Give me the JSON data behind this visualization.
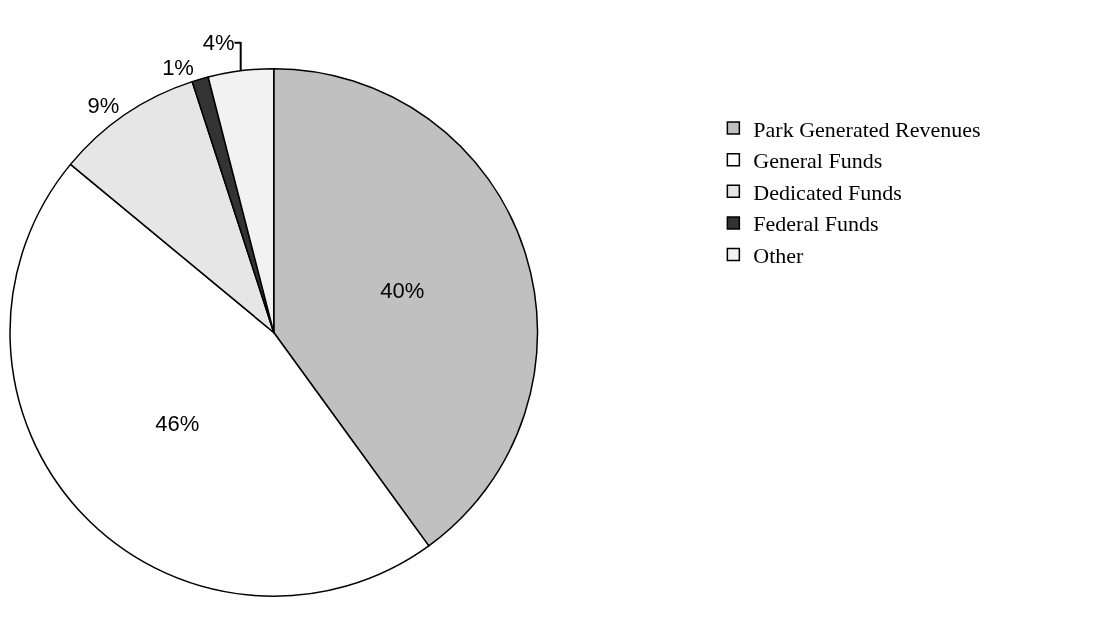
{
  "chart_data": {
    "type": "pie",
    "categories": [
      "Park Generated Revenues",
      "General Funds",
      "Dedicated Funds",
      "Federal Funds",
      "Other"
    ],
    "values": [
      40,
      46,
      9,
      1,
      4
    ],
    "value_labels": [
      "40%",
      "46%",
      "9%",
      "1%",
      "4%"
    ],
    "colors": [
      "#c0c0c0",
      "#ffffff",
      "#e6e6e6",
      "#333333",
      "#f2f2f2"
    ],
    "legend": "right"
  }
}
